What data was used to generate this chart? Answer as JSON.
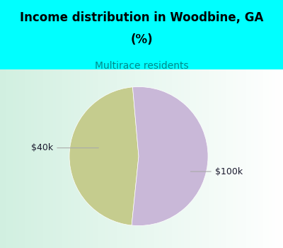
{
  "title_line1": "Income distribution in Woodbine, GA",
  "title_line2": "(%)",
  "subtitle": "Multirace residents",
  "title_color": "#000000",
  "subtitle_color": "#008b8b",
  "title_fontsize": 12,
  "subtitle_fontsize": 10,
  "background_color": "#00ffff",
  "slices": [
    {
      "label": "$40k",
      "value": 47,
      "color": "#c5cc8e"
    },
    {
      "label": "$100k",
      "value": 53,
      "color": "#c9b8d8"
    }
  ],
  "startangle": 95,
  "label_fontsize": 9,
  "label_color": "#1a1a2e",
  "line_color": "#aaaaaa"
}
